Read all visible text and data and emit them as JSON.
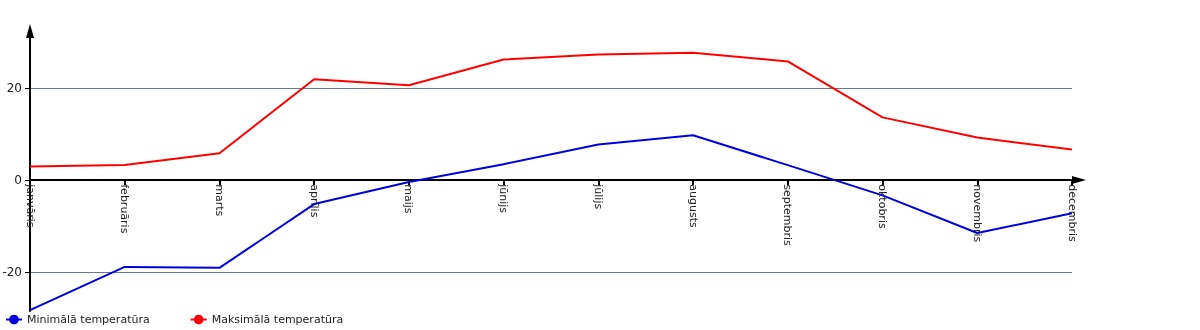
{
  "chart_data": {
    "type": "line",
    "categories": [
      "janvāris",
      "februāris",
      "marts",
      "aprīlis",
      "maijs",
      "jūnijs",
      "jūlijs",
      "augusts",
      "septembris",
      "oktobris",
      "novembris",
      "decembris"
    ],
    "series": [
      {
        "name": "Minimālā temperatūra",
        "color": "#0000dd",
        "values": [
          -28.3,
          -18.9,
          -19.1,
          -5.2,
          -0.4,
          3.5,
          7.8,
          9.8,
          3.3,
          -3.3,
          -11.5,
          -7.2
        ]
      },
      {
        "name": "Maksimālā temperatūra",
        "color": "#ff0000",
        "values": [
          3.0,
          3.3,
          5.9,
          22.0,
          20.7,
          26.3,
          27.4,
          27.8,
          25.9,
          13.7,
          9.3,
          6.7
        ]
      }
    ],
    "ylim": [
      -28.5,
      31
    ],
    "yticks": [
      -20,
      0,
      20
    ],
    "grid": "y",
    "legend": "bottom left",
    "marker": "none",
    "line_style": "solid"
  }
}
